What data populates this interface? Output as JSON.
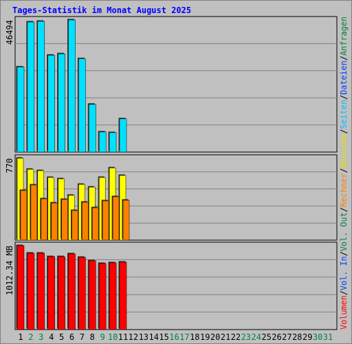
{
  "chart_data": [
    {
      "type": "bar",
      "title": "Tages-Statistik im Monat August 2025",
      "categories": [
        "1",
        "2",
        "3",
        "4",
        "5",
        "6",
        "7",
        "8",
        "9",
        "10",
        "11",
        "12",
        "13",
        "14",
        "15",
        "16",
        "17",
        "18",
        "19",
        "20",
        "21",
        "22",
        "23",
        "24",
        "25",
        "26",
        "27",
        "28",
        "29",
        "30",
        "31"
      ],
      "category_colors": [
        "#000000",
        "#008040",
        "#008040",
        "#000000",
        "#000000",
        "#000000",
        "#000000",
        "#000000",
        "#008040",
        "#008040",
        "#000000",
        "#000000",
        "#000000",
        "#000000",
        "#000000",
        "#008040",
        "#008040",
        "#000000",
        "#000000",
        "#000000",
        "#000000",
        "#000000",
        "#008040",
        "#008040",
        "#000000",
        "#000000",
        "#000000",
        "#000000",
        "#000000",
        "#008040",
        "#008040"
      ],
      "legend_separator": "/",
      "legend": [
        {
          "name": "Volumen",
          "color": "#ff0000"
        },
        {
          "name": "Vol. In",
          "color": "#0040ff"
        },
        {
          "name": "Vol. Out",
          "color": "#008040"
        },
        {
          "name": "Rechner",
          "color": "#ff8000"
        },
        {
          "name": "Besuche",
          "color": "#e0e000"
        },
        {
          "name": "Seiten",
          "color": "#00c0ff"
        },
        {
          "name": "Dateien",
          "color": "#0040ff"
        },
        {
          "name": "Anfragen",
          "color": "#008040"
        }
      ],
      "ylim": [
        0,
        46494
      ],
      "yticks": [
        46494
      ],
      "series": [
        {
          "color": "#00e0ff",
          "values": [
            29940,
            45764,
            46000,
            34080,
            34570,
            46494,
            32860,
            16800,
            7060,
            6820,
            11680,
            null,
            null,
            null,
            null,
            null,
            null,
            null,
            null,
            null,
            null,
            null,
            null,
            null,
            null,
            null,
            null,
            null,
            null,
            null,
            null
          ]
        }
      ]
    },
    {
      "type": "bar",
      "ylim": [
        0,
        770
      ],
      "yticks": [
        770
      ],
      "series": [
        {
          "color": "#ffff00",
          "values": [
            770,
            666,
            653,
            589,
            576,
            421,
            524,
            498,
            589,
            679,
            608,
            null,
            null,
            null,
            null,
            null,
            null,
            null,
            null,
            null,
            null,
            null,
            null,
            null,
            null,
            null,
            null,
            null,
            null,
            null,
            null
          ]
        },
        {
          "color": "#ff8000",
          "values": [
            466,
            518,
            388,
            349,
            382,
            278,
            356,
            304,
            369,
            408,
            375,
            null,
            null,
            null,
            null,
            null,
            null,
            null,
            null,
            null,
            null,
            null,
            null,
            null,
            null,
            null,
            null,
            null,
            null,
            null,
            null
          ]
        }
      ]
    },
    {
      "type": "bar",
      "ylim": [
        0,
        1012.34
      ],
      "yticks": [
        {
          "value": 1012.34,
          "label": "1012.34 MB"
        }
      ],
      "series": [
        {
          "color": "#ff0000",
          "values": [
            1012.34,
            921,
            921,
            879,
            879,
            913,
            871,
            830,
            797,
            805,
            813,
            null,
            null,
            null,
            null,
            null,
            null,
            null,
            null,
            null,
            null,
            null,
            null,
            null,
            null,
            null,
            null,
            null,
            null,
            null,
            null
          ]
        }
      ]
    }
  ]
}
